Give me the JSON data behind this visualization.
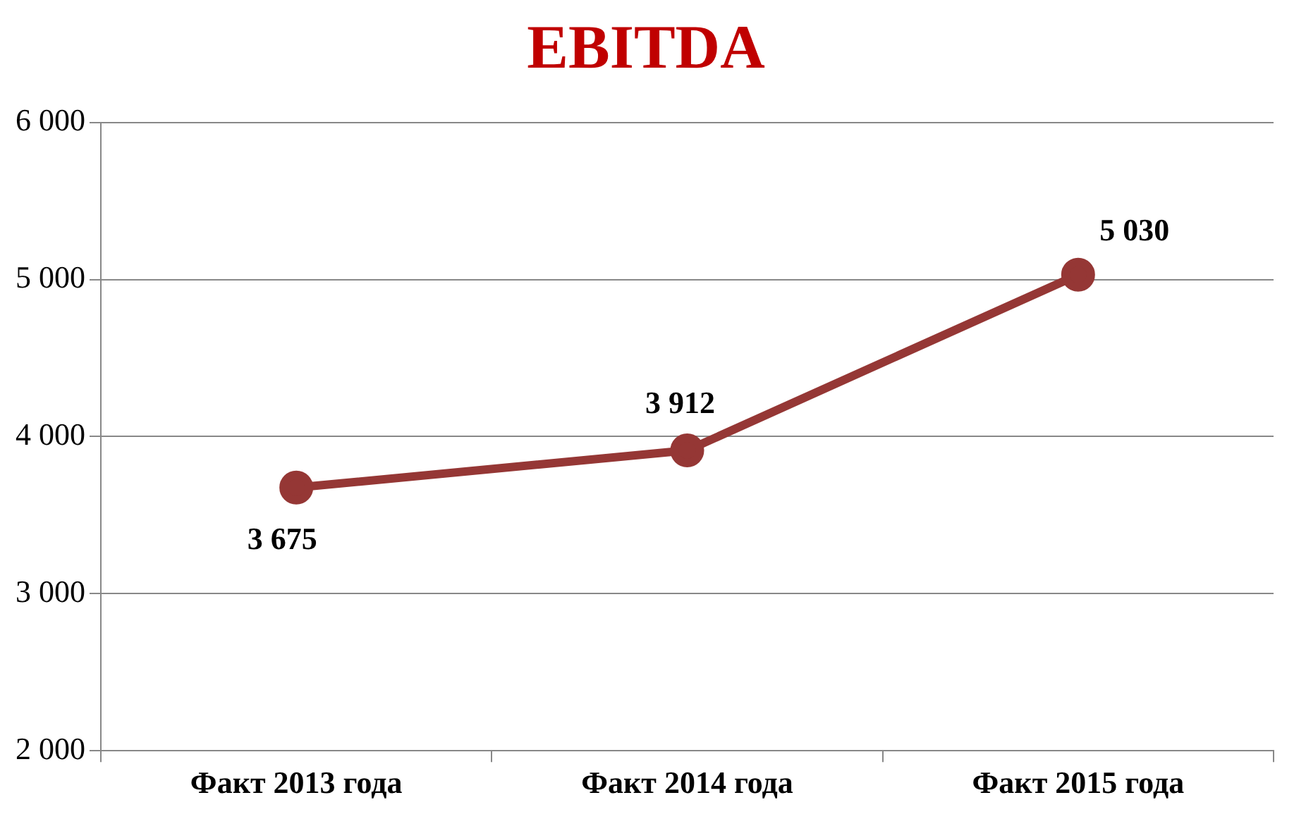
{
  "chart_data": {
    "type": "line",
    "title": "EBITDA",
    "categories": [
      "Факт 2013 года",
      "Факт 2014 года",
      "Факт 2015 года"
    ],
    "series": [
      {
        "color": "#953735",
        "values": [
          3675,
          3912,
          5030
        ],
        "value_labels": [
          "3 675",
          "3 912",
          "5 030"
        ]
      }
    ],
    "ylim": [
      2000,
      6000
    ],
    "yticks": [
      {
        "value": 2000,
        "label": "2 000"
      },
      {
        "value": 3000,
        "label": "3 000"
      },
      {
        "value": 4000,
        "label": "4 000"
      },
      {
        "value": 5000,
        "label": "5 000"
      },
      {
        "value": 6000,
        "label": "6 000"
      }
    ],
    "grid": "y",
    "legend": false,
    "marker": "circle",
    "line_style": "solid"
  }
}
